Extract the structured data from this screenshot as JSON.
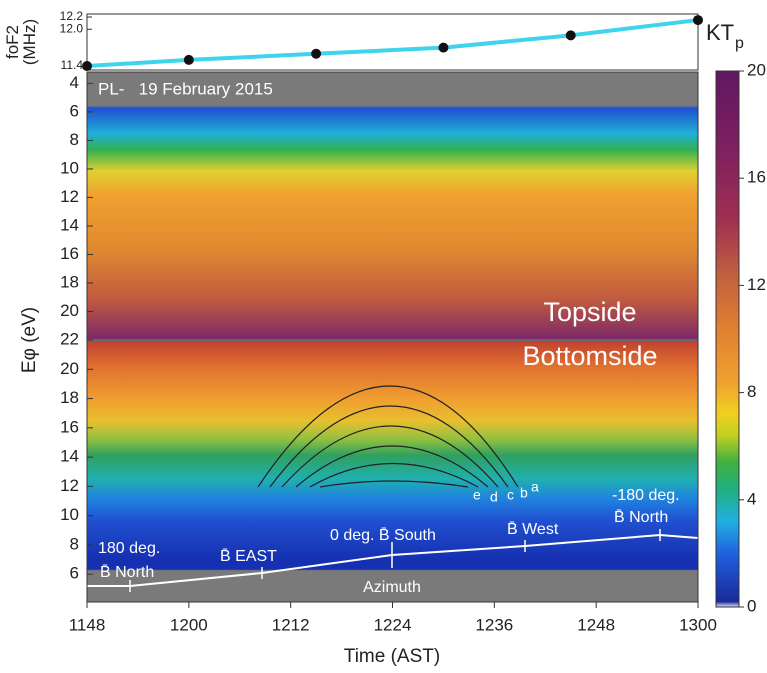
{
  "chart_data": [
    {
      "type": "line",
      "ylabel": "foF2 (MHz)",
      "x": [
        1148,
        1200,
        1215,
        1230,
        1245,
        1300
      ],
      "series": [
        {
          "color": "#3fd3ee",
          "values": [
            11.4,
            11.5,
            11.6,
            11.7,
            11.9,
            12.15
          ]
        }
      ],
      "xlim": [
        1148,
        1300
      ],
      "ylim": [
        11.4,
        12.2
      ],
      "yticks": [
        11.4,
        {
          "value": 12,
          "label": "12.0"
        },
        12.2
      ]
    },
    {
      "type": "heatmap",
      "title": "PL-   19 February 2015",
      "xlabel": "Time (AST)",
      "ylabel": "Eφ (eV)",
      "xlim": [
        1148,
        1300
      ],
      "xticks": [
        1148,
        1200,
        1212,
        1224,
        1236,
        1248,
        1300
      ],
      "panels": [
        {
          "label": "Topside",
          "ylim": [
            22,
            3.2
          ],
          "yticks": [
            4,
            6,
            8,
            10,
            12,
            14,
            16,
            18,
            20
          ]
        },
        {
          "label": "Bottomside",
          "ylim": [
            4.1,
            22
          ],
          "yticks": [
            6,
            8,
            10,
            12,
            14,
            16,
            18,
            20,
            22
          ]
        }
      ],
      "colorbar": {
        "label": "KT",
        "label_sub": "p",
        "ylim": [
          0,
          20
        ],
        "yticks": [
          0,
          4,
          8,
          12,
          16,
          20
        ]
      },
      "arc_labels": [
        "e",
        "d",
        "c",
        "b",
        "a"
      ],
      "azimuth": {
        "title": "Azimuth",
        "labels": [
          "180 deg.",
          "B̄ North",
          "B̄ EAST",
          "0 deg. B̄ South",
          "B̄ West",
          "-180 deg.",
          "B̄ North"
        ]
      }
    }
  ]
}
